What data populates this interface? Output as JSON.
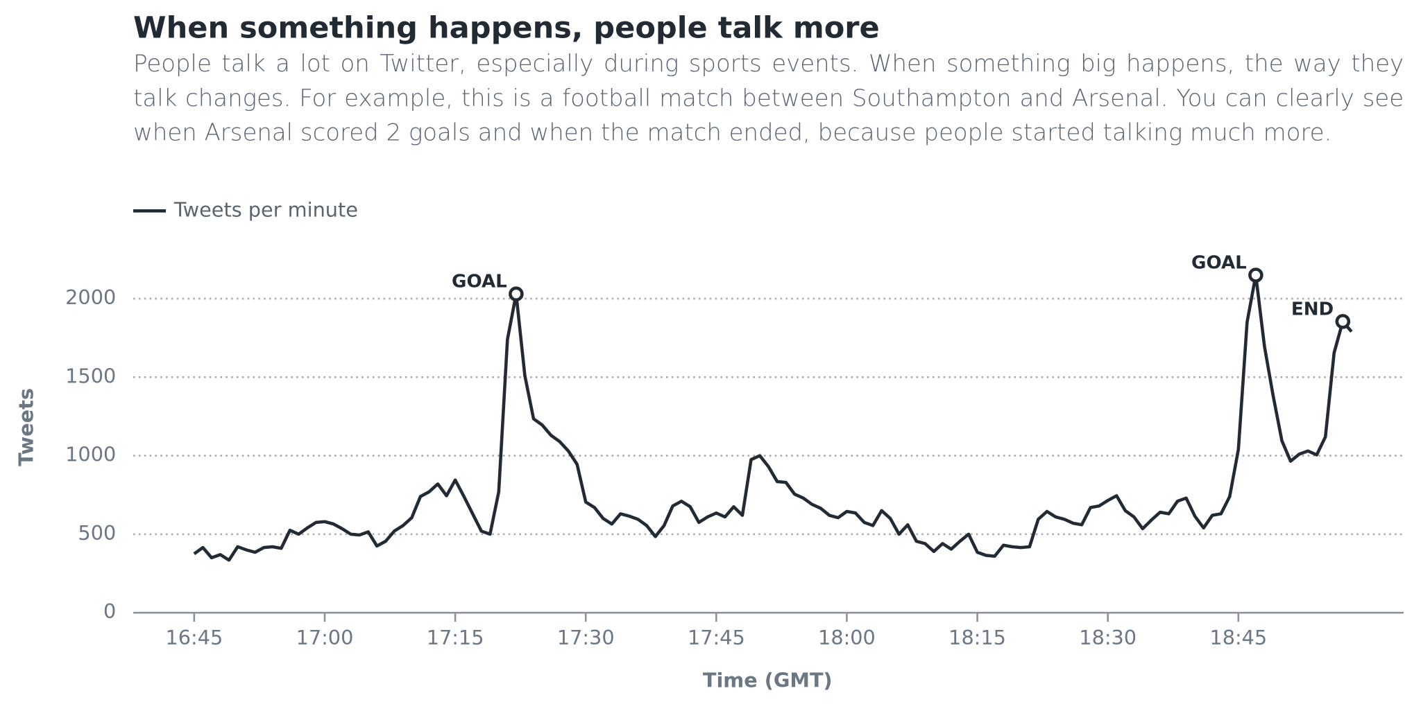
{
  "chart_data": {
    "type": "line",
    "title": "When something happens, people talk more",
    "subtitle": "People talk a lot on Twitter, especially during sports events. When something big happens, the way they talk changes. For example, this is a football match between Southampton and Arsenal. You can clearly see when Arsenal scored 2 goals and when the match ended, because people started talking much more.",
    "x_label": "Time (GMT)",
    "y_label": "Tweets",
    "x": [
      "16:45",
      "16:46",
      "16:47",
      "16:48",
      "16:49",
      "16:50",
      "16:51",
      "16:52",
      "16:53",
      "16:54",
      "16:55",
      "16:56",
      "16:57",
      "16:58",
      "16:59",
      "17:00",
      "17:01",
      "17:02",
      "17:03",
      "17:04",
      "17:05",
      "17:06",
      "17:07",
      "17:08",
      "17:09",
      "17:10",
      "17:11",
      "17:12",
      "17:13",
      "17:14",
      "17:15",
      "17:16",
      "17:17",
      "17:18",
      "17:19",
      "17:20",
      "17:21",
      "17:22",
      "17:23",
      "17:24",
      "17:25",
      "17:26",
      "17:27",
      "17:28",
      "17:29",
      "17:30",
      "17:31",
      "17:32",
      "17:33",
      "17:34",
      "17:35",
      "17:36",
      "17:37",
      "17:38",
      "17:39",
      "17:40",
      "17:41",
      "17:42",
      "17:43",
      "17:44",
      "17:45",
      "17:46",
      "17:47",
      "17:48",
      "17:49",
      "17:50",
      "17:51",
      "17:52",
      "17:53",
      "17:54",
      "17:55",
      "17:56",
      "17:57",
      "17:58",
      "17:59",
      "18:00",
      "18:01",
      "18:02",
      "18:03",
      "18:04",
      "18:05",
      "18:06",
      "18:07",
      "18:08",
      "18:09",
      "18:10",
      "18:11",
      "18:12",
      "18:13",
      "18:14",
      "18:15",
      "18:16",
      "18:17",
      "18:18",
      "18:19",
      "18:20",
      "18:21",
      "18:22",
      "18:23",
      "18:24",
      "18:25",
      "18:26",
      "18:27",
      "18:28",
      "18:29",
      "18:30",
      "18:31",
      "18:32",
      "18:33",
      "18:34",
      "18:35",
      "18:36",
      "18:37",
      "18:38",
      "18:39",
      "18:40",
      "18:41",
      "18:42",
      "18:43",
      "18:44",
      "18:45",
      "18:46",
      "18:47",
      "18:48",
      "18:49",
      "18:50",
      "18:51",
      "18:52",
      "18:53",
      "18:54",
      "18:55",
      "18:56",
      "18:57",
      "18:58"
    ],
    "series": [
      {
        "name": "Tweets per minute",
        "color": "#222a33",
        "values": [
          375,
          415,
          350,
          370,
          335,
          420,
          400,
          385,
          415,
          420,
          410,
          525,
          500,
          540,
          575,
          580,
          565,
          535,
          500,
          495,
          515,
          425,
          455,
          520,
          555,
          605,
          740,
          770,
          820,
          745,
          845,
          740,
          630,
          520,
          500,
          770,
          1740,
          2030,
          1510,
          1235,
          1195,
          1130,
          1090,
          1030,
          945,
          705,
          670,
          600,
          565,
          630,
          615,
          595,
          555,
          485,
          555,
          680,
          710,
          675,
          575,
          610,
          635,
          610,
          675,
          620,
          975,
          1000,
          930,
          835,
          830,
          755,
          730,
          690,
          665,
          620,
          605,
          645,
          635,
          575,
          555,
          650,
          600,
          500,
          560,
          455,
          440,
          390,
          440,
          405,
          455,
          500,
          385,
          365,
          360,
          430,
          420,
          415,
          420,
          595,
          645,
          610,
          595,
          570,
          560,
          670,
          680,
          715,
          745,
          650,
          610,
          535,
          590,
          640,
          630,
          710,
          730,
          615,
          540,
          620,
          630,
          740,
          1040,
          1850,
          2150,
          1695,
          1380,
          1095,
          965,
          1010,
          1030,
          1005,
          1120,
          1655,
          1855,
          1790
        ]
      }
    ],
    "annotations": [
      {
        "x": "17:22",
        "label": "GOAL"
      },
      {
        "x": "18:47",
        "label": "GOAL"
      },
      {
        "x": "18:57",
        "label": "END"
      }
    ],
    "xlim": [
      "16:38",
      "19:04"
    ],
    "xticks": [
      "16:45",
      "17:00",
      "17:15",
      "17:30",
      "17:45",
      "18:00",
      "18:15",
      "18:30",
      "18:45"
    ],
    "ylim": [
      0,
      2250
    ],
    "yticks": [
      0,
      500,
      1000,
      1500,
      2000
    ],
    "grid": true
  }
}
